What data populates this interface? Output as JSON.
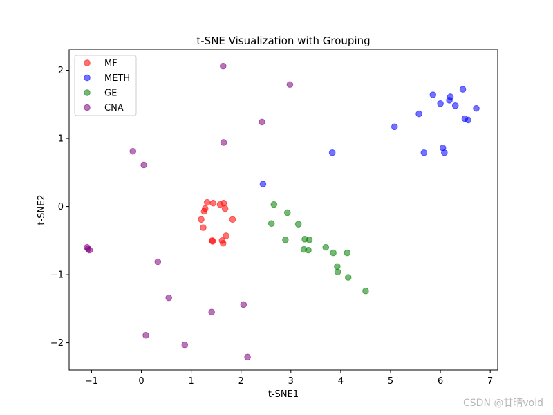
{
  "chart_data": {
    "type": "scatter",
    "title": "t-SNE Visualization with Grouping",
    "xlabel": "t-SNE1",
    "ylabel": "t-SNE2",
    "xlim": [
      -1.45,
      7.15
    ],
    "ylim": [
      -2.4,
      2.3
    ],
    "xticks": [
      -1,
      0,
      1,
      2,
      3,
      4,
      5,
      6,
      7
    ],
    "yticks": [
      -2,
      -1,
      0,
      1,
      2
    ],
    "grid": false,
    "legend_position": "top-left",
    "series": [
      {
        "name": "MF",
        "color": "#ff0000",
        "points": [
          [
            1.32,
            0.06
          ],
          [
            1.44,
            0.05
          ],
          [
            1.58,
            0.03
          ],
          [
            1.65,
            0.05
          ],
          [
            1.28,
            -0.03
          ],
          [
            1.26,
            -0.07
          ],
          [
            1.68,
            -0.03
          ],
          [
            1.2,
            -0.19
          ],
          [
            1.83,
            -0.19
          ],
          [
            1.24,
            -0.31
          ],
          [
            1.7,
            -0.43
          ],
          [
            1.42,
            -0.5
          ],
          [
            1.43,
            -0.51
          ],
          [
            1.62,
            -0.5
          ],
          [
            1.64,
            -0.54
          ]
        ]
      },
      {
        "name": "METH",
        "color": "#0000ff",
        "points": [
          [
            6.45,
            1.72
          ],
          [
            5.85,
            1.64
          ],
          [
            6.2,
            1.61
          ],
          [
            6.18,
            1.56
          ],
          [
            6.0,
            1.51
          ],
          [
            6.3,
            1.48
          ],
          [
            6.72,
            1.44
          ],
          [
            5.57,
            1.36
          ],
          [
            6.49,
            1.29
          ],
          [
            6.56,
            1.27
          ],
          [
            5.08,
            1.17
          ],
          [
            6.05,
            0.86
          ],
          [
            5.67,
            0.79
          ],
          [
            6.08,
            0.79
          ],
          [
            3.83,
            0.79
          ],
          [
            2.44,
            0.33
          ]
        ]
      },
      {
        "name": "GE",
        "color": "#008000",
        "points": [
          [
            2.66,
            0.03
          ],
          [
            2.93,
            -0.09
          ],
          [
            2.61,
            -0.25
          ],
          [
            3.15,
            -0.26
          ],
          [
            3.28,
            -0.48
          ],
          [
            3.37,
            -0.49
          ],
          [
            2.89,
            -0.49
          ],
          [
            3.26,
            -0.63
          ],
          [
            3.35,
            -0.64
          ],
          [
            3.7,
            -0.6
          ],
          [
            3.85,
            -0.68
          ],
          [
            4.13,
            -0.68
          ],
          [
            3.93,
            -0.88
          ],
          [
            3.94,
            -0.96
          ],
          [
            4.15,
            -1.04
          ],
          [
            4.5,
            -1.24
          ]
        ]
      },
      {
        "name": "CNA",
        "color": "#800080",
        "points": [
          [
            1.64,
            2.06
          ],
          [
            2.98,
            1.79
          ],
          [
            2.42,
            1.24
          ],
          [
            1.65,
            0.94
          ],
          [
            -0.17,
            0.81
          ],
          [
            0.05,
            0.61
          ],
          [
            -1.09,
            -0.6
          ],
          [
            -1.07,
            -0.62
          ],
          [
            -1.04,
            -0.64
          ],
          [
            0.33,
            -0.81
          ],
          [
            0.55,
            -1.34
          ],
          [
            2.05,
            -1.44
          ],
          [
            1.41,
            -1.55
          ],
          [
            0.09,
            -1.89
          ],
          [
            0.87,
            -2.03
          ],
          [
            2.13,
            -2.21
          ]
        ]
      }
    ]
  },
  "watermark": "CSDN @甘晴void"
}
